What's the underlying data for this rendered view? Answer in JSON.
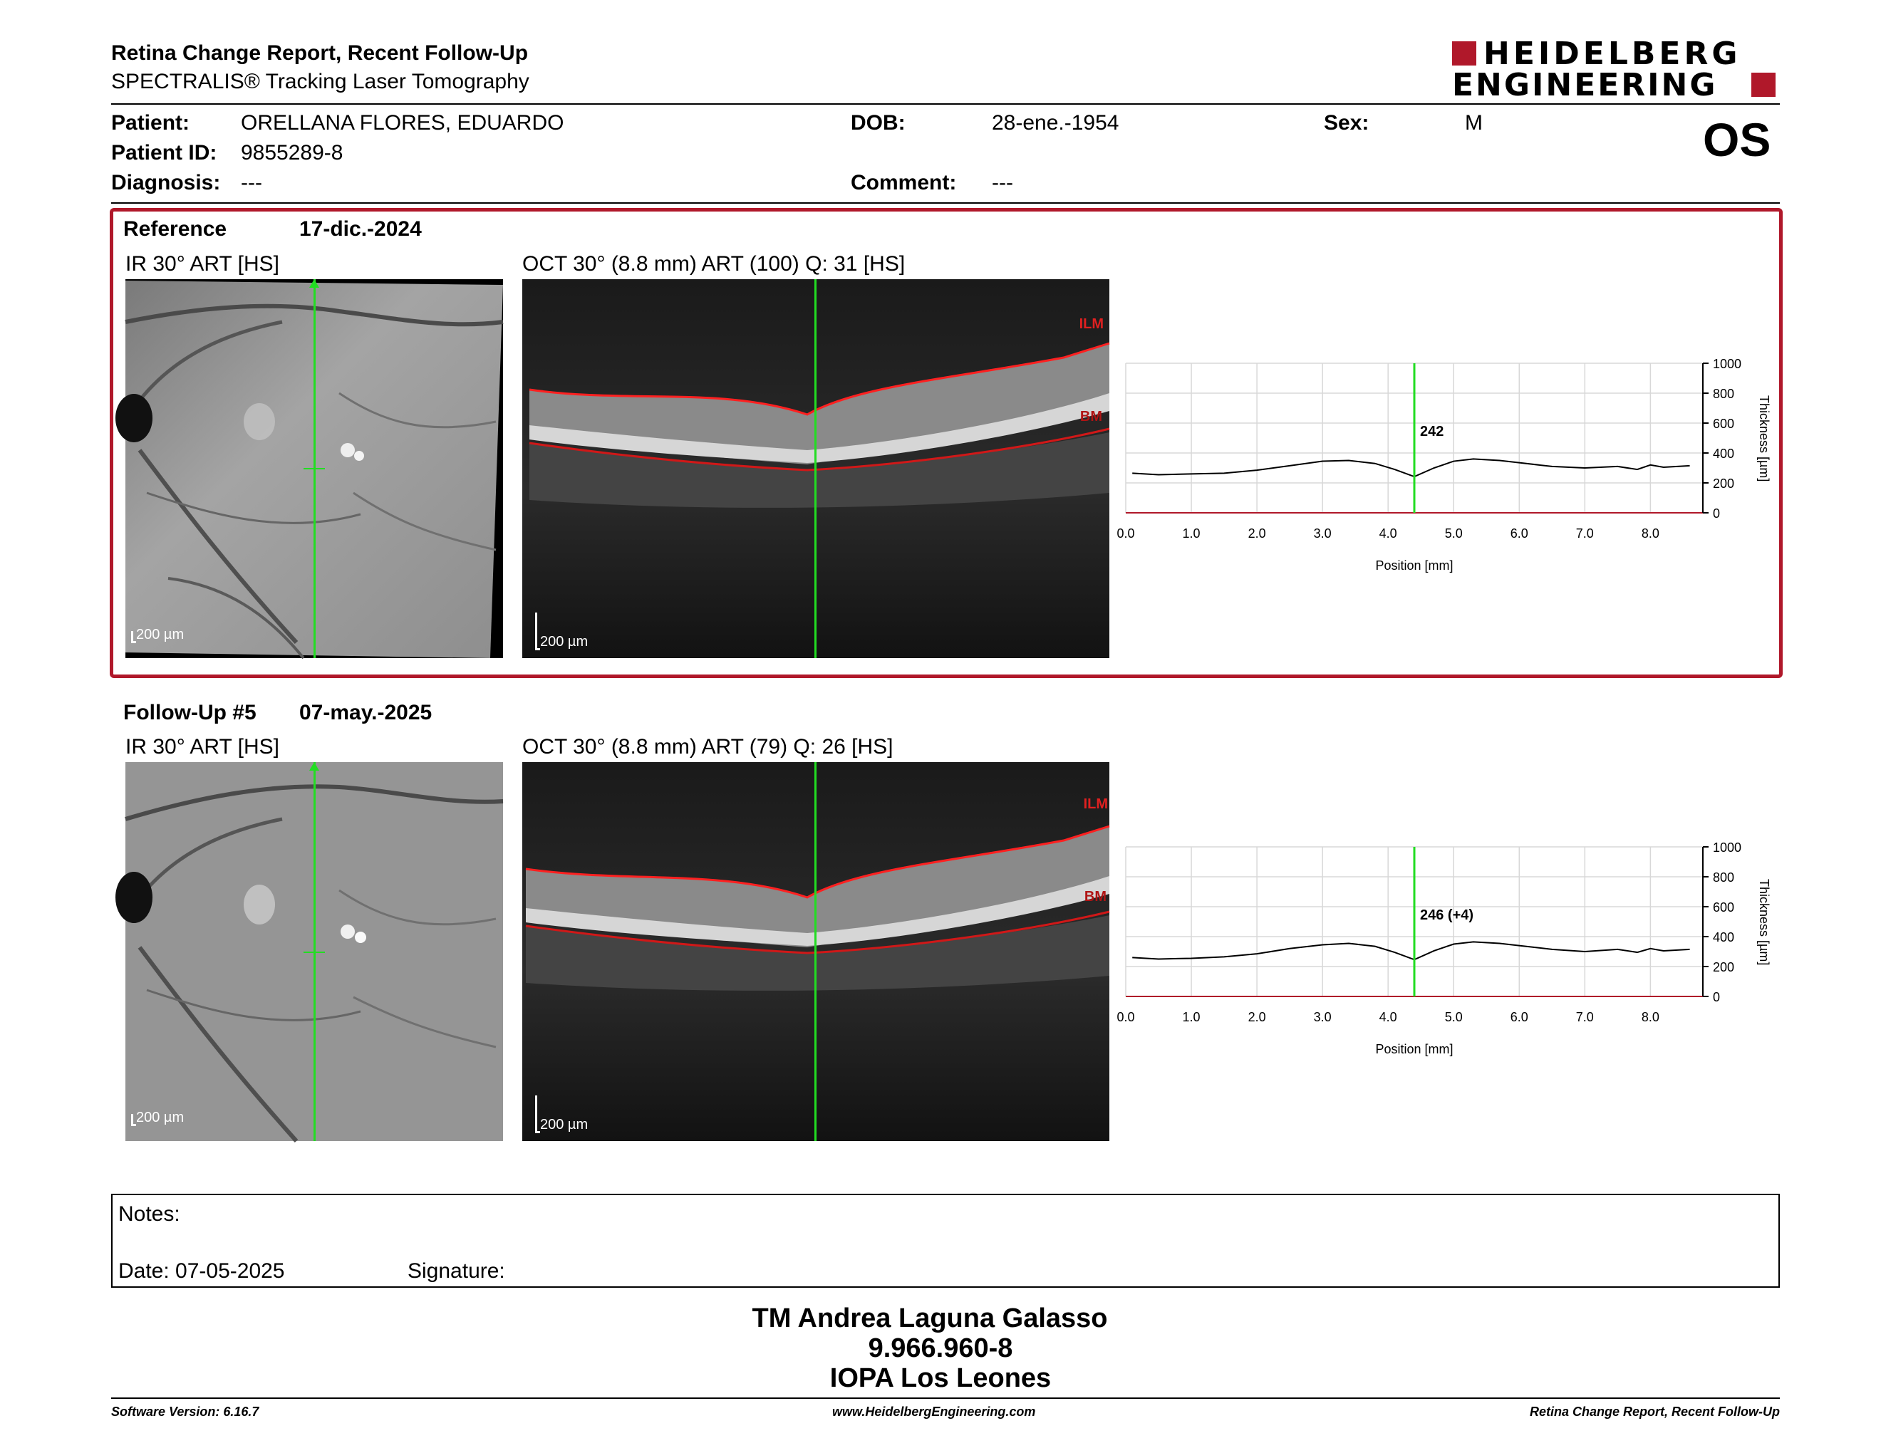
{
  "header": {
    "title": "Retina Change Report, Recent Follow-Up",
    "subtitle": "SPECTRALIS® Tracking Laser Tomography",
    "logo_line1": "HEIDELBERG",
    "logo_line2": "ENGINEERING",
    "eye": "OS"
  },
  "patient": {
    "patient_label": "Patient:",
    "patient_value": "ORELLANA FLORES, EDUARDO",
    "id_label": "Patient ID:",
    "id_value": "9855289-8",
    "diagnosis_label": "Diagnosis:",
    "diagnosis_value": "---",
    "dob_label": "DOB:",
    "dob_value": "28-ene.-1954",
    "comment_label": "Comment:",
    "comment_value": "---",
    "sex_label": "Sex:",
    "sex_value": "M"
  },
  "reference": {
    "label": "Reference",
    "date": "17-dic.-2024",
    "ir_title": "IR 30° ART [HS]",
    "oct_title": "OCT 30° (8.8 mm) ART (100) Q: 31 [HS]",
    "scale_label": "200 µm",
    "ilm": "ILM",
    "bm": "BM"
  },
  "followup": {
    "label": "Follow-Up #5",
    "date": "07-may.-2025",
    "ir_title": "IR 30° ART [HS]",
    "oct_title": "OCT 30° (8.8 mm) ART (79) Q: 26 [HS]",
    "scale_label": "200 µm",
    "ilm": "ILM",
    "bm": "BM"
  },
  "chart_data": [
    {
      "type": "line",
      "xlabel": "Position [mm]",
      "ylabel": "Thickness [µm]",
      "xlim": [
        0,
        8.8
      ],
      "ylim": [
        0,
        1000
      ],
      "x_ticks": [
        "0.0",
        "1.0",
        "2.0",
        "3.0",
        "4.0",
        "5.0",
        "6.0",
        "7.0",
        "8.0"
      ],
      "y_ticks": [
        "0",
        "200",
        "400",
        "600",
        "800",
        "1000"
      ],
      "marker_x": 4.4,
      "marker_label": "242",
      "x": [
        0.1,
        0.5,
        1.0,
        1.5,
        2.0,
        2.5,
        3.0,
        3.4,
        3.8,
        4.1,
        4.4,
        4.7,
        5.0,
        5.3,
        5.7,
        6.0,
        6.5,
        7.0,
        7.5,
        7.8,
        8.0,
        8.2,
        8.6
      ],
      "values": [
        265,
        255,
        260,
        265,
        285,
        315,
        345,
        350,
        330,
        290,
        242,
        300,
        345,
        360,
        350,
        335,
        310,
        300,
        310,
        290,
        320,
        305,
        315
      ],
      "color": "#000000",
      "marker_color": "#22dd22"
    },
    {
      "type": "line",
      "xlabel": "Position [mm]",
      "ylabel": "Thickness [µm]",
      "xlim": [
        0,
        8.8
      ],
      "ylim": [
        0,
        1000
      ],
      "x_ticks": [
        "0.0",
        "1.0",
        "2.0",
        "3.0",
        "4.0",
        "5.0",
        "6.0",
        "7.0",
        "8.0"
      ],
      "y_ticks": [
        "0",
        "200",
        "400",
        "600",
        "800",
        "1000"
      ],
      "marker_x": 4.4,
      "marker_label": "246 (+4)",
      "x": [
        0.1,
        0.5,
        1.0,
        1.5,
        2.0,
        2.5,
        3.0,
        3.4,
        3.8,
        4.1,
        4.4,
        4.7,
        5.0,
        5.3,
        5.7,
        6.0,
        6.5,
        7.0,
        7.5,
        7.8,
        8.0,
        8.2,
        8.6
      ],
      "values": [
        260,
        250,
        255,
        265,
        285,
        320,
        345,
        355,
        335,
        295,
        246,
        305,
        350,
        365,
        355,
        340,
        315,
        300,
        315,
        295,
        320,
        305,
        315
      ],
      "color": "#000000",
      "marker_color": "#22dd22"
    }
  ],
  "notes": {
    "notes_label": "Notes:",
    "date_label": "Date: 07-05-2025",
    "signature_label": "Signature:"
  },
  "signer": {
    "name": "TM Andrea Laguna Galasso",
    "id": "9.966.960-8",
    "org": "IOPA Los Leones"
  },
  "footer": {
    "left": "Software Version: 6.16.7",
    "center": "www.HeidelbergEngineering.com",
    "right": "Retina Change Report, Recent Follow-Up"
  },
  "colors": {
    "accent": "#b0182a",
    "green": "#22dd22"
  }
}
